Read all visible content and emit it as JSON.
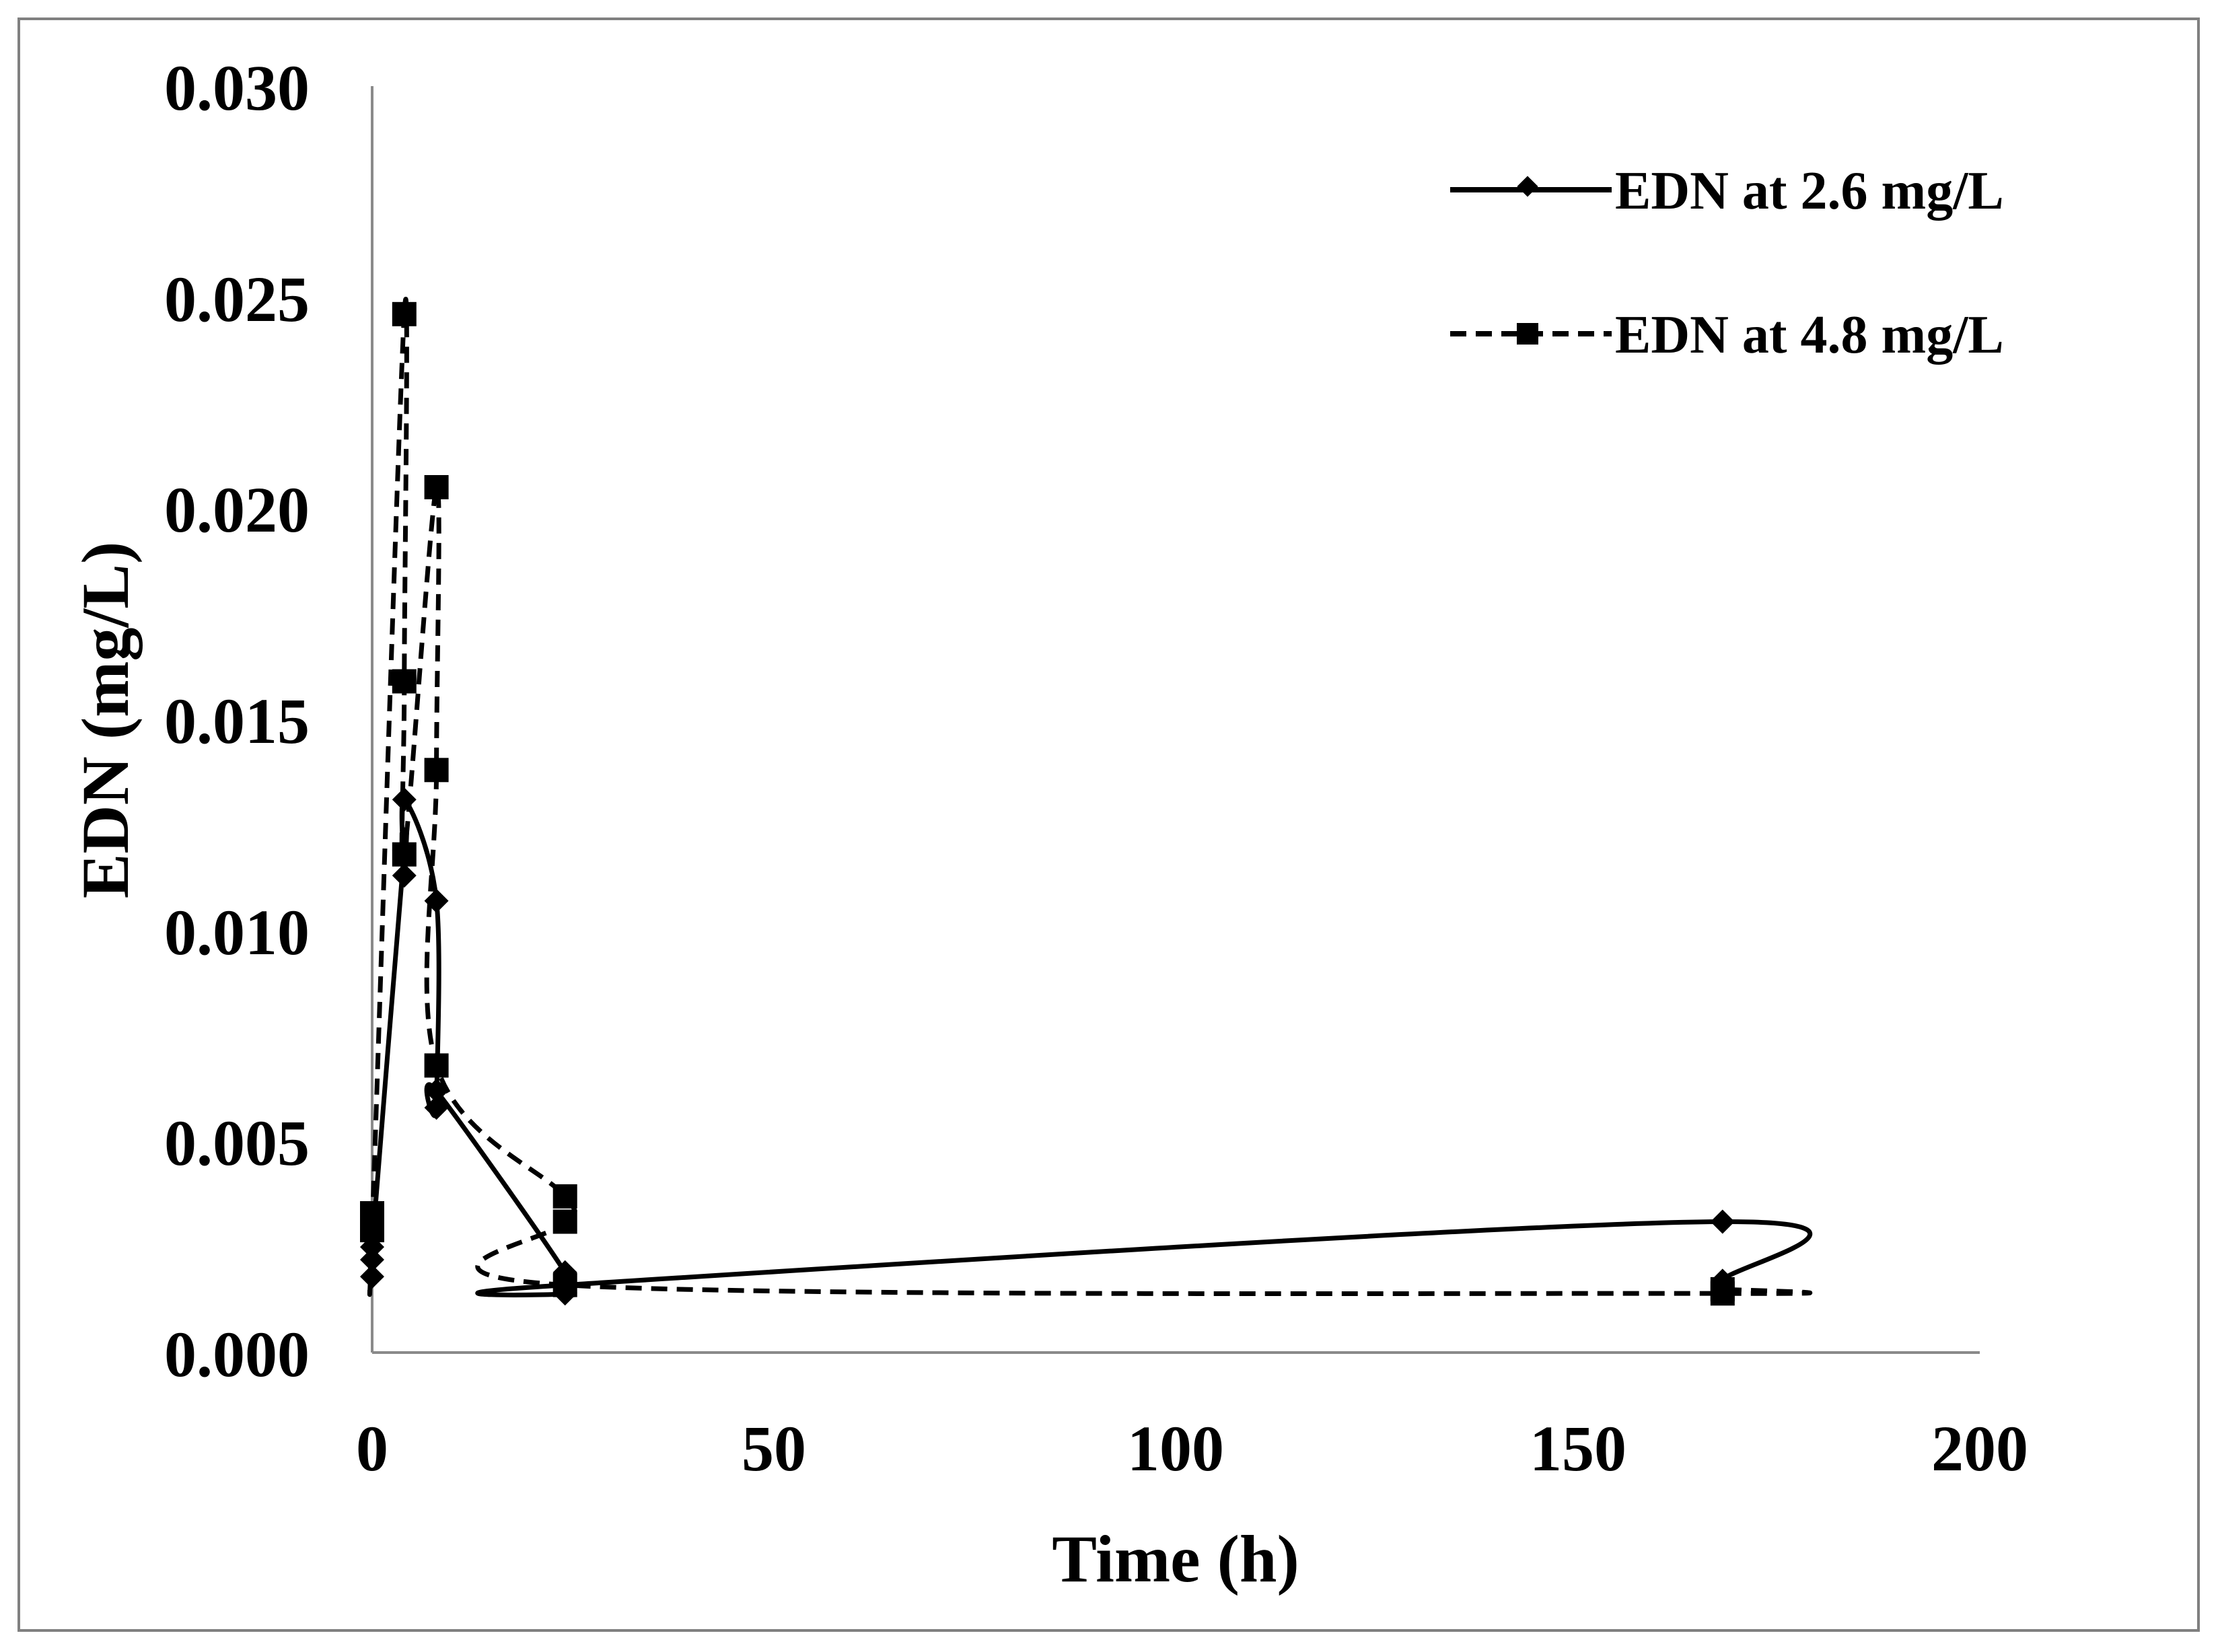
{
  "chart_data": {
    "type": "scatter",
    "xlabel": "Time (h)",
    "ylabel": "EDN (mg/L)",
    "xlim": [
      0,
      200
    ],
    "ylim": [
      0,
      0.03
    ],
    "x_ticks": [
      "0",
      "50",
      "100",
      "150",
      "200"
    ],
    "y_ticks": [
      "0.000",
      "0.005",
      "0.010",
      "0.015",
      "0.020",
      "0.025",
      "0.030"
    ],
    "grid": false,
    "legend_position": "top-right",
    "line_style": "smoothed lines with markers",
    "series": [
      {
        "name": "EDN at 2.6 mg/L",
        "marker": "diamond",
        "line": "solid",
        "color": "#000000",
        "points": [
          {
            "x": 0,
            "y": 0.0018
          },
          {
            "x": 0,
            "y": 0.0022
          },
          {
            "x": 0,
            "y": 0.0025
          },
          {
            "x": 4,
            "y": 0.0119
          },
          {
            "x": 4,
            "y": 0.0113
          },
          {
            "x": 4,
            "y": 0.0131
          },
          {
            "x": 8,
            "y": 0.0107
          },
          {
            "x": 8,
            "y": 0.0058
          },
          {
            "x": 8,
            "y": 0.0062
          },
          {
            "x": 24,
            "y": 0.0019
          },
          {
            "x": 24,
            "y": 0.0014
          },
          {
            "x": 24,
            "y": 0.0016
          },
          {
            "x": 168,
            "y": 0.0031
          },
          {
            "x": 168,
            "y": 0.0017
          },
          {
            "x": 168,
            "y": 0.0014
          }
        ]
      },
      {
        "name": "EDN at 4.8 mg/L",
        "marker": "square",
        "line": "dashed",
        "color": "#000000",
        "points": [
          {
            "x": 0,
            "y": 0.0033
          },
          {
            "x": 0,
            "y": 0.0029
          },
          {
            "x": 4,
            "y": 0.0246
          },
          {
            "x": 4,
            "y": 0.0159
          },
          {
            "x": 4,
            "y": 0.0118
          },
          {
            "x": 8,
            "y": 0.0205
          },
          {
            "x": 8,
            "y": 0.0138
          },
          {
            "x": 8,
            "y": 0.0068
          },
          {
            "x": 24,
            "y": 0.0037
          },
          {
            "x": 24,
            "y": 0.0031
          },
          {
            "x": 24,
            "y": 0.0016
          },
          {
            "x": 168,
            "y": 0.0014
          },
          {
            "x": 168,
            "y": 0.0015
          }
        ]
      }
    ]
  }
}
